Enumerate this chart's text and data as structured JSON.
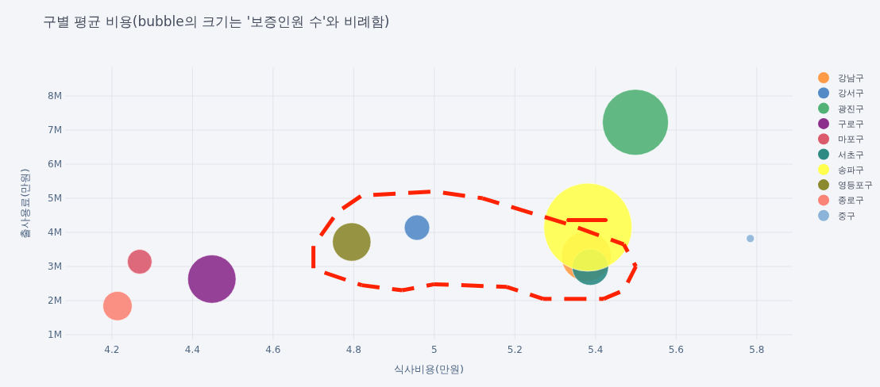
{
  "chart_data": {
    "type": "bubble",
    "title": "구별 평균 비용(bubble의 크기는 '보증인원 수'와 비례함)",
    "xlabel": "식사비용(만원)",
    "ylabel": "출사용료(만원)",
    "xlim": [
      4.084,
      5.889
    ],
    "ylim": [
      860000,
      8840000
    ],
    "xticks": [
      4.2,
      4.4,
      4.6,
      4.8,
      5,
      5.2,
      5.4,
      5.6,
      5.8
    ],
    "yticks": [
      {
        "value": 1000000,
        "label": "1M"
      },
      {
        "value": 2000000,
        "label": "2M"
      },
      {
        "value": 3000000,
        "label": "3M"
      },
      {
        "value": 4000000,
        "label": "4M"
      },
      {
        "value": 5000000,
        "label": "5M"
      },
      {
        "value": 6000000,
        "label": "6M"
      },
      {
        "value": 7000000,
        "label": "7M"
      },
      {
        "value": 8000000,
        "label": "8M"
      }
    ],
    "grid": true,
    "legend": "right",
    "marker": "circle",
    "series": [
      {
        "name": "강남구",
        "color": "#ff9b46",
        "x": [
          5.377
        ],
        "values": [
          3300000
        ],
        "sizes": [
          0.32
        ]
      },
      {
        "name": "강서구",
        "color": "#548bc7",
        "x": [
          4.957
        ],
        "values": [
          4140000
        ],
        "sizes": [
          0.083
        ]
      },
      {
        "name": "광진구",
        "color": "#52b176",
        "x": [
          5.499
        ],
        "values": [
          7230000
        ],
        "sizes": [
          0.56
        ]
      },
      {
        "name": "구로구",
        "color": "#8b2e8c",
        "x": [
          4.448
        ],
        "values": [
          2630000
        ],
        "sizes": [
          0.3
        ]
      },
      {
        "name": "마포구",
        "color": "#db5a6b",
        "x": [
          4.269
        ],
        "values": [
          3140000
        ],
        "sizes": [
          0.078
        ]
      },
      {
        "name": "서초구",
        "color": "#2e8b84",
        "x": [
          5.387
        ],
        "values": [
          2980000
        ],
        "sizes": [
          0.17
        ]
      },
      {
        "name": "송파구",
        "color": "#ffff4d",
        "x": [
          5.381
        ],
        "values": [
          4150000
        ],
        "sizes": [
          1
        ]
      },
      {
        "name": "영등포구",
        "color": "#8c8a2e",
        "x": [
          4.795
        ],
        "values": [
          3720000
        ],
        "sizes": [
          0.19
        ]
      },
      {
        "name": "종로구",
        "color": "#fa8576",
        "x": [
          4.214
        ],
        "values": [
          1840000
        ],
        "sizes": [
          0.11
        ]
      },
      {
        "name": "중구",
        "color": "#8cb4d8",
        "x": [
          5.784
        ],
        "values": [
          3820000
        ],
        "sizes": [
          0.008
        ]
      }
    ]
  }
}
